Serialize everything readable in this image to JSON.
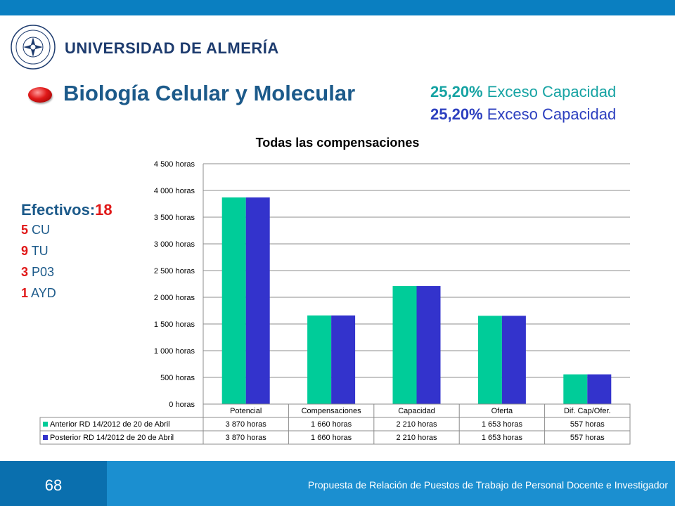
{
  "header": {
    "university": "UNIVERSIDAD DE ALMERÍA"
  },
  "title": "Biología Celular y Molecular",
  "excess": [
    {
      "pct": "25,20%",
      "text": " Exceso Capacidad"
    },
    {
      "pct": "25,20%",
      "text": " Exceso Capacidad"
    }
  ],
  "staff": {
    "label": "Efectivos:",
    "total": "18",
    "lines": [
      {
        "n": "5",
        "text": " CU"
      },
      {
        "n": "9",
        "text": " TU"
      },
      {
        "n": "3",
        "text": " P03"
      },
      {
        "n": "1",
        "text": " AYD"
      }
    ]
  },
  "colors": {
    "series1": "#00cc99",
    "series2": "#3333cc",
    "accent_red": "#e01818"
  },
  "chart_data": {
    "type": "bar",
    "title": "Todas las compensaciones",
    "categories": [
      "Potencial",
      "Compensaciones",
      "Capacidad",
      "Oferta",
      "Dif. Cap/Ofer."
    ],
    "series": [
      {
        "name": "Anterior RD 14/2012 de 20 de Abril",
        "values": [
          3870,
          1660,
          2210,
          1653,
          557
        ],
        "labels": [
          "3 870 horas",
          "1 660 horas",
          "2 210 horas",
          "1 653 horas",
          "557 horas"
        ]
      },
      {
        "name": "Posterior RD 14/2012 de 20 de Abril",
        "values": [
          3870,
          1660,
          2210,
          1653,
          557
        ],
        "labels": [
          "3 870 horas",
          "1 660 horas",
          "2 210 horas",
          "1 653 horas",
          "557 horas"
        ]
      }
    ],
    "ylim": [
      0,
      4500
    ],
    "yticks": [
      {
        "v": 0,
        "label": "0 horas"
      },
      {
        "v": 500,
        "label": "500 horas"
      },
      {
        "v": 1000,
        "label": "1 000 horas"
      },
      {
        "v": 1500,
        "label": "1 500 horas"
      },
      {
        "v": 2000,
        "label": "2 000 horas"
      },
      {
        "v": 2500,
        "label": "2 500 horas"
      },
      {
        "v": 3000,
        "label": "3 000 horas"
      },
      {
        "v": 3500,
        "label": "3 500 horas"
      },
      {
        "v": 4000,
        "label": "4 000 horas"
      },
      {
        "v": 4500,
        "label": "4 500 horas"
      }
    ],
    "grid": true,
    "legend": "data-table"
  },
  "footer": {
    "page": "68",
    "text": "Propuesta de Relación de Puestos de Trabajo de Personal Docente e Investigador"
  }
}
